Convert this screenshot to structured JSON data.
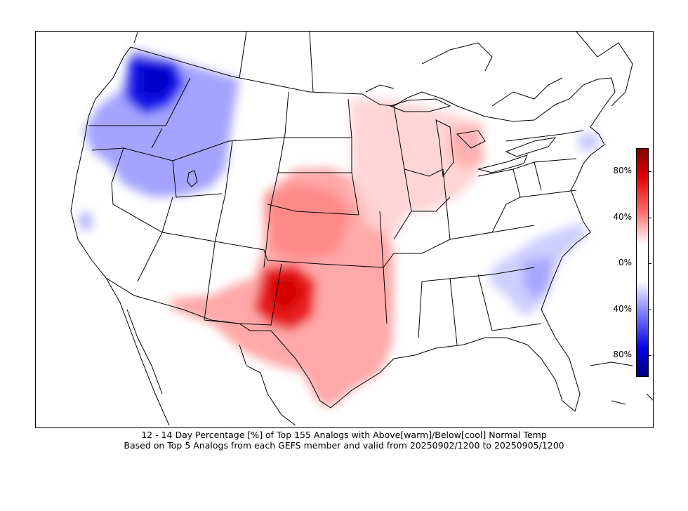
{
  "caption": {
    "line1": "12 - 14 Day  Percentage [%] of Top 155 Analogs with Above[warm]/Below[cool] Normal Temp",
    "line2": "Based on Top 5 Analogs from each GEFS member and valid from 20250902/1200 to 20250905/1200"
  },
  "colorbar": {
    "ticks": [
      "80%",
      "40%",
      "0%",
      "40%",
      "80%"
    ],
    "warm_color": "#e00000",
    "cool_color": "#0000e0",
    "neutral_color": "#ffffff"
  },
  "map": {
    "projection": "lambert-conformal",
    "region": "CONUS",
    "features": [
      "state-borders",
      "country-borders",
      "coastlines",
      "lakes"
    ]
  }
}
